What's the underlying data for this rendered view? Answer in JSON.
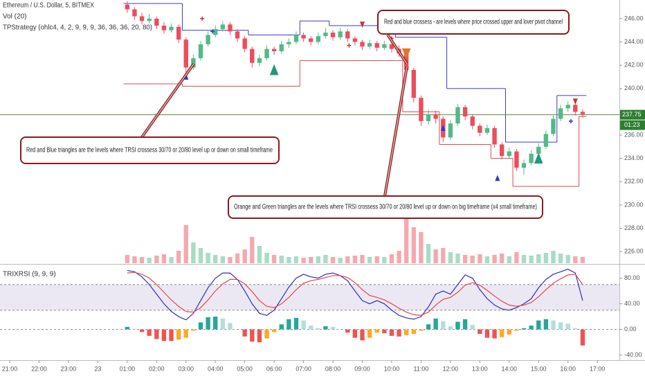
{
  "header": {
    "symbol": "Ethereum / U.S. Dollar, 5, BITMEX",
    "volume": "Vol (20)",
    "strategy": "TPStrategy (ohlc4, 4, 2, 9, 9, 9, 36, 36, 36, 20, 80)"
  },
  "chart_data": [
    {
      "type": "candlestick",
      "x": [
        4,
        4.25,
        4.5,
        4.75,
        5,
        5.25,
        5.5,
        5.75,
        6,
        6.25,
        6.5,
        6.75,
        7,
        7.25,
        7.5,
        7.75,
        8,
        8.25,
        8.5,
        8.75,
        9,
        9.25,
        9.5,
        9.75,
        10,
        10.25,
        10.5,
        10.75,
        11,
        11.25,
        11.5,
        11.75,
        12,
        12.25,
        12.5,
        12.75,
        13,
        13.25,
        13.5,
        13.75,
        14,
        14.25,
        14.5,
        14.75,
        15,
        15.25,
        15.5,
        15.75,
        16,
        16.25,
        16.5,
        16.75,
        17,
        17.25,
        17.5,
        17.75,
        18,
        18.25,
        18.5,
        18.75,
        19,
        19.25,
        19.5
      ],
      "open": [
        247.2,
        246.8,
        246.2,
        245.8,
        246.0,
        245.4,
        245.0,
        245.3,
        244.2,
        241.8,
        242.6,
        243.8,
        244.6,
        245.1,
        245.5,
        244.9,
        244.3,
        243.4,
        242.2,
        242.6,
        243.4,
        243.2,
        243.8,
        244.0,
        244.6,
        244.3,
        244.0,
        244.5,
        244.8,
        244.4,
        244.9,
        244.3,
        244.0,
        243.6,
        243.9,
        243.5,
        243.8,
        243.4,
        243.0,
        241.6,
        239.2,
        237.2,
        237.8,
        237.4,
        235.8,
        237.0,
        238.4,
        237.6,
        236.8,
        236.2,
        236.6,
        235.2,
        234.2,
        234.6,
        233.2,
        233.6,
        234.4,
        235.0,
        236.1,
        237.4,
        238.3,
        238.6,
        238.0
      ],
      "high": [
        247.5,
        247.0,
        246.5,
        246.4,
        246.2,
        245.7,
        245.6,
        245.5,
        244.4,
        242.9,
        244.1,
        244.9,
        245.4,
        245.8,
        245.7,
        245.1,
        244.5,
        243.6,
        242.9,
        243.7,
        243.6,
        244.1,
        244.3,
        244.9,
        244.8,
        244.5,
        244.8,
        245.2,
        245.0,
        245.2,
        245.1,
        244.5,
        244.2,
        244.2,
        244.1,
        244.1,
        244.0,
        243.7,
        243.2,
        241.8,
        239.4,
        238.2,
        238.1,
        237.6,
        237.3,
        238.7,
        238.6,
        237.8,
        237.0,
        236.9,
        236.8,
        235.4,
        234.9,
        234.8,
        233.9,
        234.7,
        235.3,
        236.4,
        237.7,
        238.6,
        238.9,
        238.8,
        238.2
      ],
      "low": [
        246.5,
        245.9,
        245.5,
        245.6,
        245.1,
        244.7,
        244.8,
        243.9,
        241.4,
        241.6,
        242.4,
        243.6,
        244.4,
        244.9,
        244.6,
        244.0,
        243.1,
        241.8,
        241.9,
        242.4,
        242.9,
        243.0,
        243.5,
        243.8,
        244.0,
        243.7,
        243.8,
        244.3,
        244.1,
        244.2,
        244.0,
        243.7,
        243.3,
        243.4,
        243.2,
        243.3,
        243.1,
        242.7,
        241.2,
        238.8,
        236.8,
        236.9,
        237.0,
        235.4,
        235.6,
        236.8,
        237.3,
        236.5,
        235.9,
        236.0,
        234.9,
        233.9,
        234.0,
        232.9,
        232.6,
        233.4,
        234.2,
        234.8,
        235.9,
        237.2,
        238.0,
        237.7,
        237.5
      ],
      "close": [
        246.8,
        246.2,
        245.8,
        246.0,
        245.4,
        245.0,
        245.3,
        244.2,
        241.8,
        242.6,
        243.8,
        244.6,
        245.1,
        245.5,
        244.9,
        244.3,
        243.4,
        242.2,
        242.6,
        243.4,
        243.2,
        243.8,
        244.0,
        244.6,
        244.3,
        244.0,
        244.5,
        244.8,
        244.4,
        244.9,
        244.3,
        244.0,
        243.6,
        243.9,
        243.5,
        243.8,
        243.4,
        243.0,
        241.6,
        239.2,
        237.2,
        237.8,
        237.4,
        235.8,
        237.0,
        238.4,
        237.6,
        236.8,
        236.2,
        236.6,
        235.2,
        234.2,
        234.6,
        233.2,
        233.6,
        234.4,
        235.0,
        236.1,
        237.4,
        238.3,
        238.6,
        238.0,
        237.8
      ],
      "volume": [
        12,
        10,
        9,
        8,
        11,
        13,
        9,
        18,
        55,
        30,
        22,
        15,
        12,
        10,
        9,
        14,
        20,
        38,
        25,
        15,
        12,
        11,
        9,
        10,
        8,
        9,
        10,
        12,
        9,
        8,
        10,
        11,
        12,
        9,
        10,
        9,
        13,
        18,
        70,
        52,
        45,
        28,
        20,
        22,
        16,
        14,
        12,
        11,
        13,
        10,
        12,
        14,
        10,
        16,
        12,
        11,
        13,
        15,
        18,
        14,
        12,
        10,
        9
      ],
      "upper_channel": [
        247.3,
        247.3,
        247.3,
        247.3,
        247.3,
        247.3,
        247.3,
        247.3,
        245.0,
        245.0,
        245.0,
        245.0,
        245.0,
        245.0,
        245.0,
        245.0,
        245.0,
        244.6,
        244.6,
        244.6,
        244.6,
        244.6,
        244.6,
        244.6,
        245.8,
        245.8,
        245.8,
        245.8,
        245.4,
        245.4,
        245.4,
        245.4,
        245.4,
        245.4,
        245.4,
        245.4,
        245.4,
        244.4,
        244.4,
        244.4,
        244.4,
        244.4,
        244.4,
        244.4,
        240.0,
        240.0,
        240.0,
        240.0,
        240.0,
        240.0,
        240.0,
        240.0,
        235.4,
        235.4,
        235.4,
        235.4,
        235.4,
        235.4,
        235.4,
        239.4,
        239.4,
        239.4,
        239.4
      ],
      "lower_channel": [
        240.4,
        240.4,
        240.4,
        240.4,
        240.4,
        240.4,
        240.4,
        240.4,
        240.2,
        240.2,
        240.2,
        240.2,
        240.2,
        240.2,
        240.2,
        240.2,
        240.2,
        240.2,
        240.2,
        240.2,
        240.2,
        240.2,
        240.2,
        240.2,
        242.4,
        242.4,
        242.4,
        242.4,
        242.4,
        242.4,
        242.4,
        242.4,
        242.4,
        242.4,
        242.4,
        242.4,
        242.4,
        242.4,
        238.0,
        238.0,
        238.0,
        238.0,
        238.0,
        235.2,
        235.2,
        235.2,
        235.2,
        235.2,
        235.2,
        235.2,
        234.0,
        234.0,
        234.0,
        231.6,
        231.6,
        231.6,
        231.6,
        231.6,
        231.6,
        231.6,
        231.6,
        231.6,
        237.6
      ],
      "markers": [
        {
          "x": 6.0,
          "y": 241.0,
          "shape": "up",
          "size": "small",
          "color": "#2b3bcc"
        },
        {
          "x": 9.0,
          "y": 241.6,
          "shape": "up",
          "size": "big",
          "color": "#1e9a7a"
        },
        {
          "x": 12.0,
          "y": 245.5,
          "shape": "down",
          "size": "small",
          "color": "#c0392b"
        },
        {
          "x": 13.5,
          "y": 243.0,
          "shape": "down",
          "size": "big",
          "color": "#e8741e"
        },
        {
          "x": 14.75,
          "y": 236.6,
          "shape": "up",
          "size": "small",
          "color": "#2b3bcc"
        },
        {
          "x": 16.6,
          "y": 232.3,
          "shape": "up",
          "size": "small",
          "color": "#2b3bcc"
        },
        {
          "x": 18.0,
          "y": 234.0,
          "shape": "up",
          "size": "big",
          "color": "#1e9a7a"
        },
        {
          "x": 19.25,
          "y": 238.9,
          "shape": "down",
          "size": "small",
          "color": "#c0392b"
        },
        {
          "x": 6.55,
          "y": 246.0,
          "shape": "cross",
          "size": "small",
          "color": "#c0392b"
        },
        {
          "x": 6.9,
          "y": 244.9,
          "shape": "cross",
          "size": "small",
          "color": "#2b3bcc"
        },
        {
          "x": 11.55,
          "y": 243.7,
          "shape": "cross",
          "size": "small",
          "color": "#c0392b"
        },
        {
          "x": 13.0,
          "y": 244.3,
          "shape": "cross",
          "size": "small",
          "color": "#c0392b"
        },
        {
          "x": 19.1,
          "y": 237.2,
          "shape": "cross",
          "size": "small",
          "color": "#2b3bcc"
        }
      ],
      "annotations": [
        "Red and blue crossess - are levels where price crossed upper and lover pivot channel",
        "Red and Blue triangles are the levels where TRSI crossess 30/70 or 20/80 level up or down on small timeframe",
        "Orange and Green triangles are the levels where TRSI crossess 30/70 or 20/80 level up or down on big timeframe (x4 small timeframe)"
      ],
      "last_price": 237.75,
      "countdown": "01:23",
      "xlim": [
        -0.33,
        20.75
      ],
      "ylim": [
        225,
        247.6
      ],
      "yticks": [
        {
          "value": 226,
          "label": "226.00"
        },
        {
          "value": 228,
          "label": "228.00"
        },
        {
          "value": 230,
          "label": "230.00"
        },
        {
          "value": 232,
          "label": "232.00"
        },
        {
          "value": 234,
          "label": "234.00"
        },
        {
          "value": 236,
          "label": "236.00"
        },
        {
          "value": 240,
          "label": "240.00"
        },
        {
          "value": 242,
          "label": "242.00"
        },
        {
          "value": 244,
          "label": "244.00"
        },
        {
          "value": 246,
          "label": "246.00"
        }
      ],
      "colors": {
        "up": "#53b987",
        "down": "#eb4d5c",
        "volume_up": "#a8dcc6",
        "volume_down": "#f4a9ae",
        "upper": "#3a3acc",
        "lower": "#e0474c",
        "last_price": "#2e7d32"
      }
    },
    {
      "type": "oscillator",
      "title": "TRIXRSI (9, 9, 9)",
      "x": [
        4,
        4.25,
        4.5,
        4.75,
        5,
        5.25,
        5.5,
        5.75,
        6,
        6.25,
        6.5,
        6.75,
        7,
        7.25,
        7.5,
        7.75,
        8,
        8.25,
        8.5,
        8.75,
        9,
        9.25,
        9.5,
        9.75,
        10,
        10.25,
        10.5,
        10.75,
        11,
        11.25,
        11.5,
        11.75,
        12,
        12.25,
        12.5,
        12.75,
        13,
        13.25,
        13.5,
        13.75,
        14,
        14.25,
        14.5,
        14.75,
        15,
        15.25,
        15.5,
        15.75,
        16,
        16.25,
        16.5,
        16.75,
        17,
        17.25,
        17.5,
        17.75,
        18,
        18.25,
        18.5,
        18.75,
        19,
        19.25,
        19.5
      ],
      "series": [
        {
          "color": "#2f2fb0",
          "values": [
            92,
            90,
            82,
            70,
            55,
            40,
            28,
            20,
            15,
            25,
            45,
            65,
            80,
            88,
            88,
            78,
            60,
            40,
            25,
            22,
            30,
            48,
            66,
            80,
            86,
            82,
            80,
            86,
            88,
            84,
            76,
            60,
            45,
            40,
            45,
            40,
            30,
            22,
            18,
            16,
            20,
            35,
            55,
            60,
            55,
            70,
            85,
            80,
            62,
            48,
            38,
            32,
            30,
            34,
            40,
            48,
            65,
            78,
            86,
            90,
            94,
            88,
            45
          ]
        },
        {
          "color": "#e0474c",
          "values": [
            88,
            89,
            86,
            80,
            70,
            58,
            46,
            36,
            28,
            27,
            34,
            46,
            60,
            71,
            78,
            78,
            71,
            59,
            45,
            36,
            34,
            40,
            50,
            62,
            72,
            76,
            78,
            81,
            84,
            84,
            81,
            73,
            62,
            53,
            50,
            46,
            40,
            33,
            27,
            23,
            22,
            27,
            38,
            47,
            50,
            58,
            69,
            73,
            69,
            61,
            52,
            44,
            38,
            36,
            38,
            42,
            51,
            62,
            72,
            79,
            85,
            86,
            70
          ]
        }
      ],
      "histogram": [
        4,
        1,
        -4,
        -10,
        -15,
        -18,
        -18,
        -16,
        -13,
        -2,
        11,
        19,
        20,
        17,
        10,
        0,
        -11,
        -19,
        -20,
        -14,
        -4,
        8,
        16,
        18,
        14,
        6,
        2,
        5,
        4,
        0,
        -5,
        -13,
        -17,
        -13,
        -5,
        -6,
        -10,
        -11,
        -9,
        -7,
        -2,
        8,
        17,
        13,
        5,
        12,
        16,
        7,
        -7,
        -13,
        -14,
        -12,
        -8,
        -2,
        2,
        6,
        14,
        16,
        14,
        11,
        9,
        2,
        -25
      ],
      "histogram_colors": {
        "rising_up": "#26a69a",
        "falling_up": "#b2dfdb",
        "falling_down": "#ef5350",
        "rising_down": "#ffa726"
      },
      "levels": [
        70,
        30,
        0
      ],
      "band_color": "#ece8f3",
      "xlim": [
        -0.33,
        20.75
      ],
      "xticks": [
        {
          "value": 0,
          "label": "21:00"
        },
        {
          "value": 1,
          "label": "22:00"
        },
        {
          "value": 2,
          "label": "23:00"
        },
        {
          "value": 3,
          "label": "23"
        },
        {
          "value": 4,
          "label": "01:00"
        },
        {
          "value": 5,
          "label": "02:00"
        },
        {
          "value": 6,
          "label": "03:00"
        },
        {
          "value": 7,
          "label": "04:00"
        },
        {
          "value": 8,
          "label": "05:00"
        },
        {
          "value": 9,
          "label": "06:00"
        },
        {
          "value": 10,
          "label": "07:00"
        },
        {
          "value": 11,
          "label": "08:00"
        },
        {
          "value": 12,
          "label": "09:00"
        },
        {
          "value": 13,
          "label": "10:00"
        },
        {
          "value": 14,
          "label": "11:00"
        },
        {
          "value": 15,
          "label": "12:00"
        },
        {
          "value": 16,
          "label": "13:00"
        },
        {
          "value": 17,
          "label": "14:00"
        },
        {
          "value": 18,
          "label": "15:00"
        },
        {
          "value": 19,
          "label": "16:00"
        },
        {
          "value": 20,
          "label": "17:00"
        }
      ],
      "ylim": [
        -48,
        100
      ],
      "yticks": [
        {
          "value": -40,
          "label": "-40.00"
        },
        {
          "value": 0,
          "label": "0.00"
        },
        {
          "value": 40,
          "label": "40.00"
        },
        {
          "value": 80,
          "label": "80.00"
        }
      ]
    }
  ]
}
